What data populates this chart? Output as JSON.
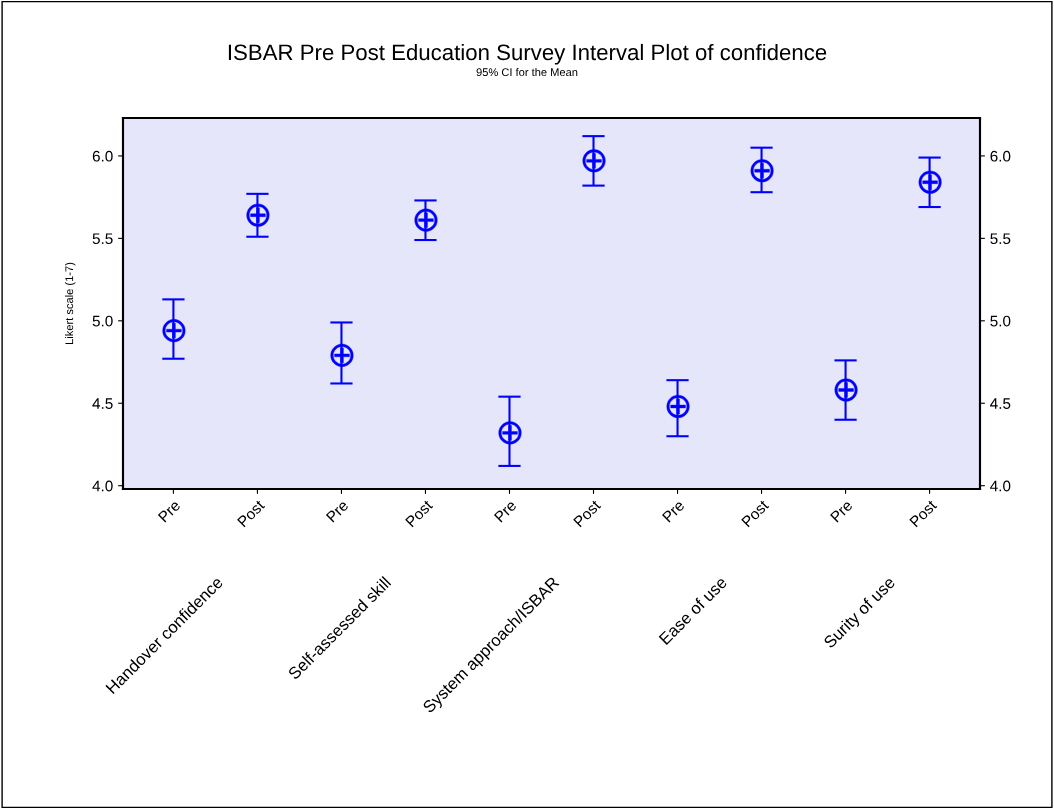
{
  "chart_data": {
    "type": "scatter",
    "title": "ISBAR Pre Post Education Survey Interval Plot of confidence",
    "subtitle": "95% CI for the Mean",
    "ylabel": "Likert scale (1-7)",
    "categories": [
      "Pre",
      "Post",
      "Pre",
      "Post",
      "Pre",
      "Post",
      "Pre",
      "Post",
      "Pre",
      "Post"
    ],
    "annotations": [
      "Handover confidence",
      "Self-assessed skill",
      "System approach/ISBAR",
      "Ease of use",
      "Surity of use"
    ],
    "series": [
      {
        "color": "#0000ff",
        "values": [
          4.94,
          5.64,
          4.79,
          5.61,
          4.32,
          5.97,
          4.48,
          5.91,
          4.58,
          5.84
        ],
        "errors": [
          [
            4.77,
            5.13
          ],
          [
            5.51,
            5.77
          ],
          [
            4.62,
            4.99
          ],
          [
            5.49,
            5.73
          ],
          [
            4.12,
            4.54
          ],
          [
            5.82,
            6.12
          ],
          [
            4.3,
            4.64
          ],
          [
            5.78,
            6.05
          ],
          [
            4.4,
            4.76
          ],
          [
            5.69,
            5.99
          ]
        ]
      }
    ],
    "ylim": [
      3.98,
      6.23
    ],
    "yticks": [
      {
        "value": 4,
        "label": "4.0"
      },
      {
        "value": 4.5,
        "label": "4.5"
      },
      {
        "value": 5,
        "label": "5.0"
      },
      {
        "value": 5.5,
        "label": "5.5"
      },
      {
        "value": 6,
        "label": "6.0"
      }
    ],
    "y2lim": [
      3.98,
      6.23
    ],
    "y2ticks": [
      {
        "value": 4,
        "label": "4.0"
      },
      {
        "value": 4.5,
        "label": "4.5"
      },
      {
        "value": 5,
        "label": "5.0"
      },
      {
        "value": 5.5,
        "label": "5.5"
      },
      {
        "value": 6,
        "label": "6.0"
      }
    ],
    "marker": "circle",
    "grid": false,
    "legend": false
  }
}
